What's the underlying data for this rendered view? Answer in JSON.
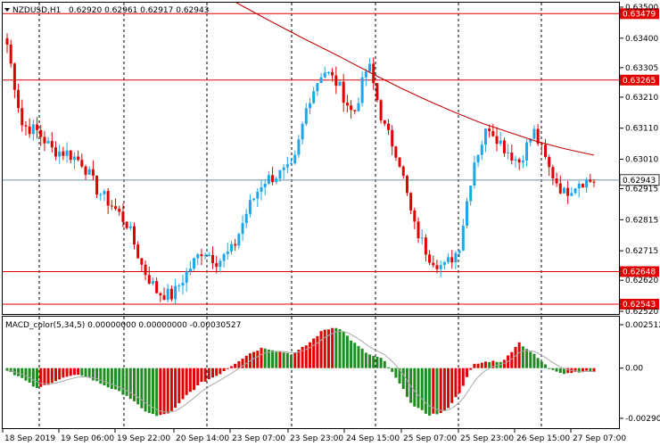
{
  "header": {
    "symbol": "NZDUSD,H1",
    "ohlc": "0.62920 0.62961 0.62917 0.62943"
  },
  "indicator": {
    "label": "MACD_color(5,34,5) 0.00000000 0.00000000 -0.00030527"
  },
  "price_axis": {
    "ticks": [
      "0.63500",
      "0.63400",
      "0.63305",
      "0.63210",
      "0.63110",
      "0.63010",
      "0.62915",
      "0.62815",
      "0.62715",
      "0.62620",
      "0.62520"
    ]
  },
  "levels": [
    {
      "label": "0.63479",
      "color": "#e00000"
    },
    {
      "label": "0.63265",
      "color": "#e00000"
    },
    {
      "label": "0.62648",
      "color": "#e00000"
    },
    {
      "label": "0.62543",
      "color": "#e00000"
    }
  ],
  "current_price": {
    "label": "0.62943",
    "line_color": "#6a8fa8"
  },
  "macd_axis": {
    "ticks": [
      "0.0025125",
      "0.00",
      "-0.002905"
    ]
  },
  "time_axis": {
    "ticks": [
      "18 Sep 2019",
      "19 Sep 06:00",
      "19 Sep 22:00",
      "20 Sep 14:00",
      "23 Sep 07:00",
      "23 Sep 23:00",
      "24 Sep 15:00",
      "25 Sep 07:00",
      "25 Sep 23:00",
      "26 Sep 15:00",
      "27 Sep 07:00"
    ]
  },
  "colors": {
    "bull": "#1ea7e8",
    "bear": "#e00000",
    "hist_pos": "#e00000",
    "hist_neg": "#1e8c1e",
    "ma": "#c00000",
    "signal": "#a8a8a8",
    "grid": "#000000"
  },
  "chart_data": {
    "type": "candlestick",
    "timeframe": "H1",
    "anchors": [
      0.6338,
      0.6312,
      0.631,
      0.6304,
      0.6303,
      0.63,
      0.6291,
      0.6286,
      0.628,
      0.6266,
      0.6258,
      0.6257,
      0.6265,
      0.6272,
      0.6268,
      0.6272,
      0.6285,
      0.6294,
      0.6296,
      0.6298,
      0.632,
      0.633,
      0.6325,
      0.6315,
      0.6332,
      0.6312,
      0.6302,
      0.628,
      0.627,
      0.6266,
      0.6272,
      0.63,
      0.6312,
      0.6305,
      0.63,
      0.631,
      0.6298,
      0.629,
      0.6294,
      0.6294
    ],
    "macd_anchors": [
      -0.0001,
      -0.0006,
      -0.0012,
      -0.0008,
      -0.0005,
      -0.0004,
      -0.0008,
      -0.0012,
      -0.0016,
      -0.0024,
      -0.0028,
      -0.0025,
      -0.0015,
      -0.0008,
      -0.0004,
      0.0002,
      0.0008,
      0.0012,
      0.001,
      0.0008,
      0.0014,
      0.0022,
      0.0024,
      0.0015,
      0.0008,
      0.0005,
      -0.0008,
      -0.0022,
      -0.0027,
      -0.0026,
      -0.0015,
      0.0002,
      0.0004,
      0.0004,
      0.0015,
      0.0008,
      0.0,
      -0.0003,
      -0.0002,
      -0.0002
    ]
  }
}
